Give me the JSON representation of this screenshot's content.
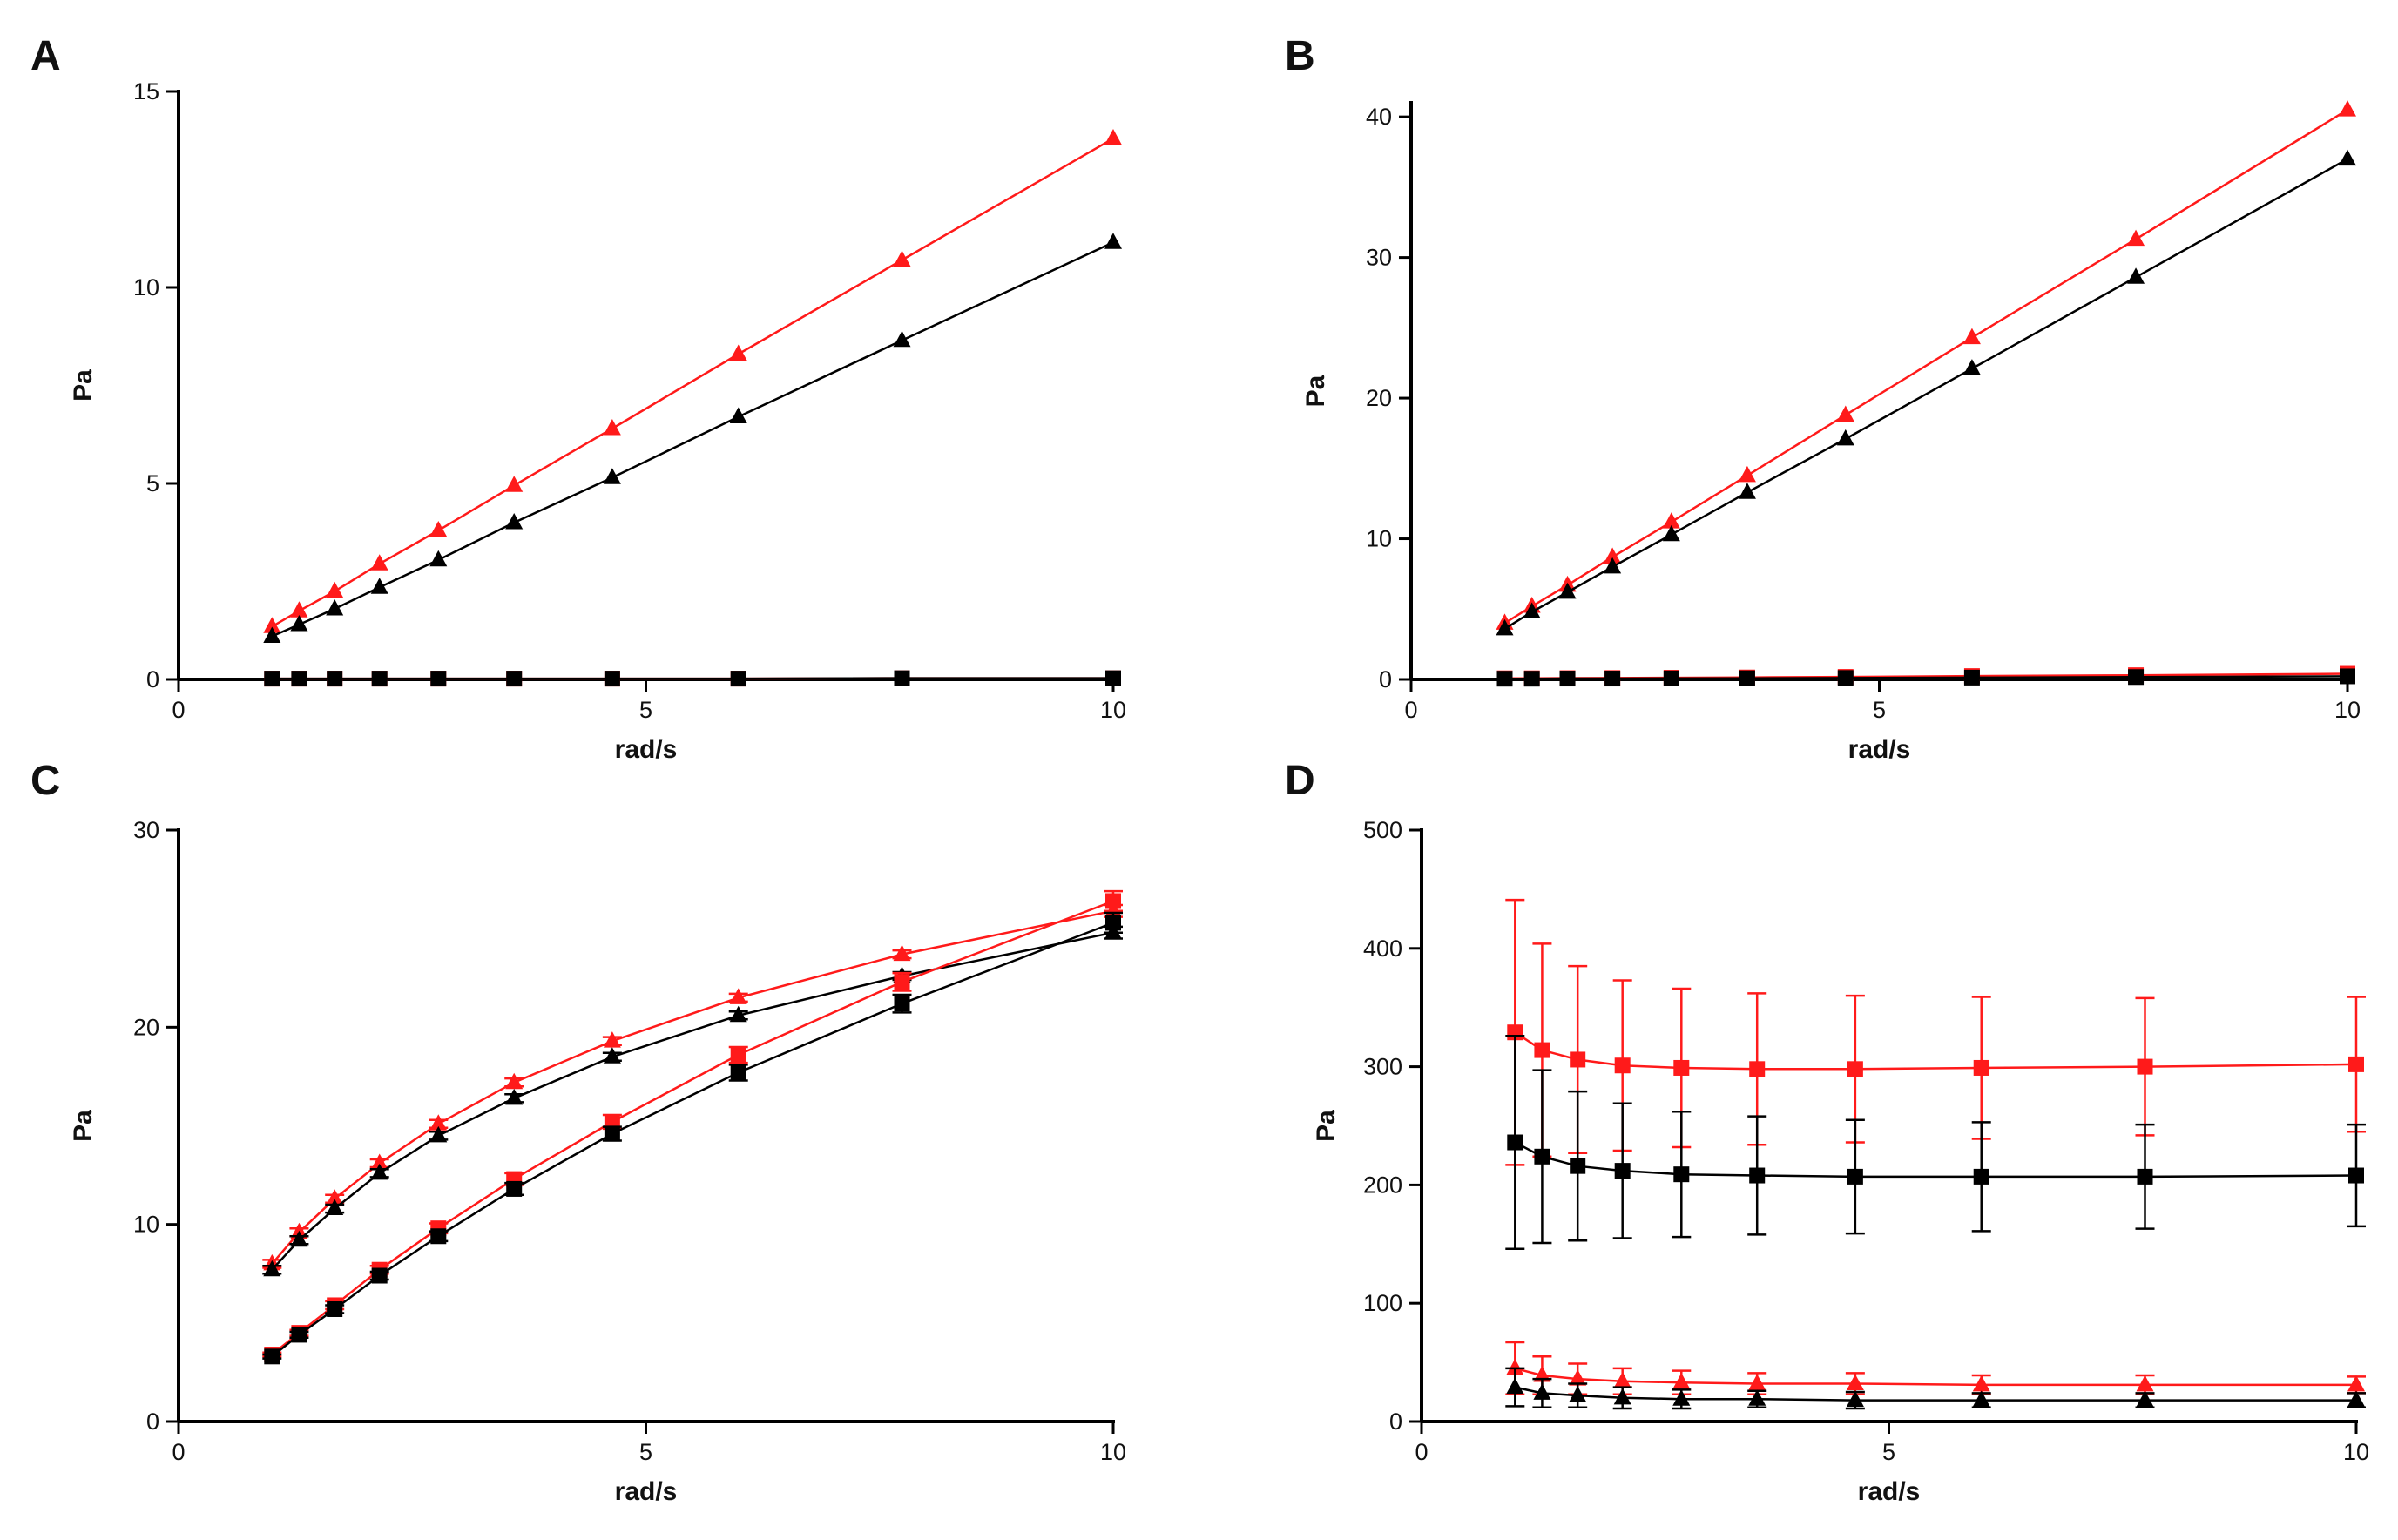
{
  "colors": {
    "red": "#ff1a1a",
    "black": "#000000",
    "axis": "#000000"
  },
  "chart_data": [
    {
      "panel_label": "A",
      "type": "line",
      "xlabel": "rad/s",
      "ylabel": "Pa",
      "xlim": [
        0,
        10
      ],
      "ylim": [
        0,
        15
      ],
      "xticks": [
        0,
        5,
        10
      ],
      "yticks": [
        0,
        5,
        10,
        15
      ],
      "x": [
        1.0,
        1.29,
        1.67,
        2.15,
        2.78,
        3.59,
        4.64,
        5.99,
        7.74,
        10.0
      ],
      "series": [
        {
          "name": "red-triangle",
          "marker": "triangle",
          "color": "#ff1a1a",
          "values": [
            1.35,
            1.75,
            2.25,
            2.95,
            3.8,
            4.95,
            6.4,
            8.3,
            10.7,
            13.8
          ],
          "errors": []
        },
        {
          "name": "black-triangle",
          "marker": "triangle",
          "color": "#000000",
          "values": [
            1.1,
            1.4,
            1.8,
            2.35,
            3.05,
            4.0,
            5.15,
            6.7,
            8.65,
            11.15
          ],
          "errors": []
        },
        {
          "name": "red-square",
          "marker": "square",
          "color": "#ff1a1a",
          "values": [
            0.02,
            0.02,
            0.02,
            0.02,
            0.02,
            0.02,
            0.02,
            0.02,
            0.03,
            0.03
          ],
          "errors": []
        },
        {
          "name": "black-square",
          "marker": "square",
          "color": "#000000",
          "values": [
            0.02,
            0.02,
            0.02,
            0.02,
            0.02,
            0.02,
            0.02,
            0.02,
            0.03,
            0.03
          ],
          "errors": []
        }
      ]
    },
    {
      "panel_label": "B",
      "type": "line",
      "xlabel": "rad/s",
      "ylabel": "Pa",
      "xlim": [
        0,
        10
      ],
      "ylim": [
        0,
        41
      ],
      "xticks": [
        0,
        5,
        10
      ],
      "yticks": [
        0,
        10,
        20,
        30,
        40
      ],
      "x": [
        1.0,
        1.29,
        1.67,
        2.15,
        2.78,
        3.59,
        4.64,
        5.99,
        7.74,
        10.0
      ],
      "series": [
        {
          "name": "red-triangle",
          "marker": "triangle",
          "color": "#ff1a1a",
          "values": [
            4.0,
            5.2,
            6.7,
            8.7,
            11.2,
            14.5,
            18.8,
            24.3,
            31.3,
            40.5
          ],
          "errors": []
        },
        {
          "name": "black-triangle",
          "marker": "triangle",
          "color": "#000000",
          "values": [
            3.6,
            4.8,
            6.2,
            8.0,
            10.3,
            13.3,
            17.1,
            22.1,
            28.6,
            37.0
          ],
          "errors": []
        },
        {
          "name": "red-square",
          "marker": "square",
          "color": "#ff1a1a",
          "values": [
            0.08,
            0.08,
            0.09,
            0.1,
            0.12,
            0.14,
            0.18,
            0.24,
            0.3,
            0.4
          ],
          "errors": []
        },
        {
          "name": "black-square",
          "marker": "square",
          "color": "#000000",
          "values": [
            0.05,
            0.05,
            0.06,
            0.06,
            0.07,
            0.08,
            0.1,
            0.13,
            0.17,
            0.22
          ],
          "errors": []
        }
      ]
    },
    {
      "panel_label": "C",
      "type": "line",
      "xlabel": "rad/s",
      "ylabel": "Pa",
      "xlim": [
        0,
        10
      ],
      "ylim": [
        0,
        30
      ],
      "xticks": [
        0,
        5,
        10
      ],
      "yticks": [
        0,
        10,
        20,
        30
      ],
      "x": [
        1.0,
        1.29,
        1.67,
        2.15,
        2.78,
        3.59,
        4.64,
        5.99,
        7.74,
        10.0
      ],
      "series": [
        {
          "name": "red-triangle",
          "marker": "triangle",
          "color": "#ff1a1a",
          "values": [
            8.0,
            9.6,
            11.3,
            13.1,
            15.1,
            17.2,
            19.3,
            21.5,
            23.7,
            25.9
          ],
          "errors": [
            0.2,
            0.2,
            0.2,
            0.2,
            0.2,
            0.2,
            0.2,
            0.2,
            0.2,
            0.3
          ]
        },
        {
          "name": "black-triangle",
          "marker": "triangle",
          "color": "#000000",
          "values": [
            7.7,
            9.2,
            10.8,
            12.6,
            14.5,
            16.4,
            18.5,
            20.6,
            22.6,
            24.8
          ],
          "errors": [
            0.2,
            0.2,
            0.2,
            0.2,
            0.2,
            0.2,
            0.2,
            0.2,
            0.2,
            0.3
          ]
        },
        {
          "name": "red-square",
          "marker": "square",
          "color": "#ff1a1a",
          "values": [
            3.4,
            4.5,
            5.9,
            7.7,
            9.8,
            12.3,
            15.2,
            18.6,
            22.3,
            26.4
          ],
          "errors": [
            0.1,
            0.15,
            0.2,
            0.2,
            0.25,
            0.3,
            0.35,
            0.4,
            0.45,
            0.5
          ]
        },
        {
          "name": "black-square",
          "marker": "square",
          "color": "#000000",
          "values": [
            3.3,
            4.4,
            5.7,
            7.4,
            9.4,
            11.8,
            14.6,
            17.7,
            21.2,
            25.3
          ],
          "errors": [
            0.1,
            0.15,
            0.2,
            0.2,
            0.25,
            0.3,
            0.35,
            0.4,
            0.45,
            0.5
          ]
        }
      ]
    },
    {
      "panel_label": "D",
      "type": "line",
      "xlabel": "rad/s",
      "ylabel": "Pa",
      "xlim": [
        0,
        10
      ],
      "ylim": [
        0,
        500
      ],
      "xticks": [
        0,
        5,
        10
      ],
      "yticks": [
        0,
        100,
        200,
        300,
        400,
        500
      ],
      "x": [
        1.0,
        1.29,
        1.67,
        2.15,
        2.78,
        3.59,
        4.64,
        5.99,
        7.74,
        10.0
      ],
      "series": [
        {
          "name": "red-square",
          "marker": "square",
          "color": "#ff1a1a",
          "values": [
            329,
            314,
            306,
            301,
            299,
            298,
            298,
            299,
            300,
            302
          ],
          "errors": [
            112,
            90,
            79,
            72,
            67,
            64,
            62,
            60,
            58,
            57
          ]
        },
        {
          "name": "black-square",
          "marker": "square",
          "color": "#000000",
          "values": [
            236,
            224,
            216,
            212,
            209,
            208,
            207,
            207,
            207,
            208
          ],
          "errors": [
            90,
            73,
            63,
            57,
            53,
            50,
            48,
            46,
            44,
            43
          ]
        },
        {
          "name": "red-triangle",
          "marker": "triangle",
          "color": "#ff1a1a",
          "values": [
            45,
            39,
            36,
            34,
            33,
            32,
            32,
            31,
            31,
            31
          ],
          "errors": [
            22,
            16,
            13,
            11,
            10,
            9,
            9,
            8,
            8,
            7
          ]
        },
        {
          "name": "black-triangle",
          "marker": "triangle",
          "color": "#000000",
          "values": [
            29,
            24,
            22,
            20,
            19,
            19,
            18,
            18,
            18,
            18
          ],
          "errors": [
            16,
            12,
            10,
            9,
            8,
            7,
            7,
            6,
            6,
            6
          ]
        }
      ]
    }
  ]
}
